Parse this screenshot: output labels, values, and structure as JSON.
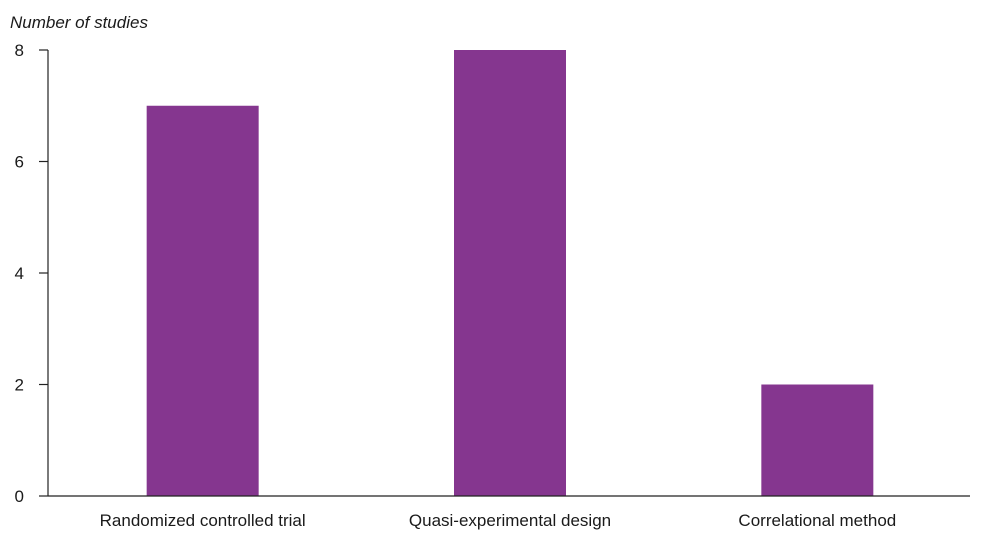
{
  "chart_data": {
    "type": "bar",
    "categories": [
      "Randomized controlled trial",
      "Quasi-experimental design",
      "Correlational method"
    ],
    "values": [
      7,
      8,
      2
    ],
    "title": "",
    "xlabel": "",
    "ylabel": "Number of studies",
    "ylim": [
      0,
      8
    ],
    "yticks": [
      0,
      2,
      4,
      6,
      8
    ],
    "grid": false,
    "bar_color": "#85368f"
  }
}
